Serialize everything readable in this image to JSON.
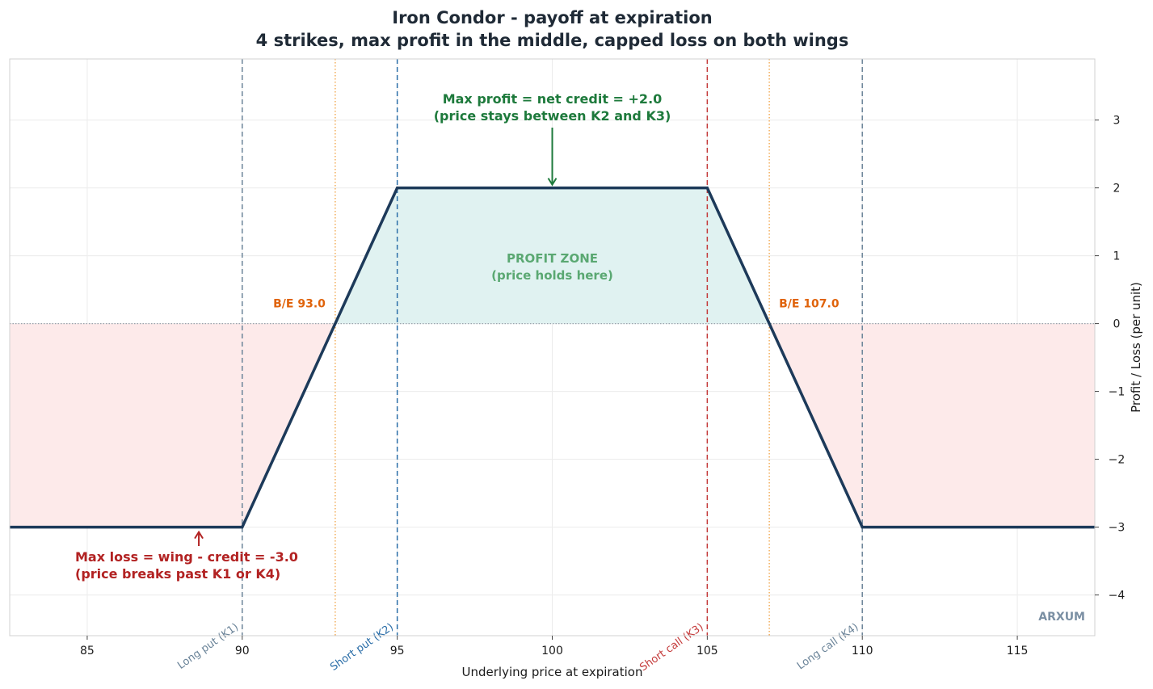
{
  "title": "Iron Condor - payoff at expiration",
  "subtitle": "4 strikes, max profit in the middle, capped loss on both wings",
  "watermark": "ARXUM",
  "colors": {
    "payoff_line": "#1d3a5a",
    "profit_fill": "#e0f2f1",
    "loss_fill": "#fdeaea",
    "long_strike": "#6b8499",
    "short_put": "#2b6ea8",
    "short_call": "#c43a3a",
    "breakeven": "#f0a040",
    "breakeven_text": "#e0630b",
    "profit_text": "#1e7a3c",
    "profit_zone_text": "#5aa872",
    "loss_text": "#b22222",
    "watermark": "#7a8fa3"
  },
  "chart_data": {
    "type": "line",
    "xlabel": "Underlying price at expiration",
    "ylabel": "Profit / Loss (per unit)",
    "xlim": [
      82.5,
      117.5
    ],
    "ylim": [
      -4.6,
      3.9
    ],
    "x_ticks": [
      85,
      90,
      95,
      100,
      105,
      110,
      115
    ],
    "y_ticks": [
      3,
      2,
      1,
      0,
      -1,
      -2,
      -3,
      -4
    ],
    "x_tick_labels": [
      "85",
      "90",
      "95",
      "100",
      "105",
      "110",
      "115"
    ],
    "y_tick_labels": [
      "3",
      "2",
      "1",
      "0",
      "−1",
      "−2",
      "−3",
      "−4"
    ],
    "grid": true,
    "series": [
      {
        "x": [
          82.5,
          90,
          95,
          105,
          110,
          117.5
        ],
        "y": [
          -3,
          -3,
          2,
          2,
          -3,
          -3
        ]
      }
    ],
    "strikes": [
      {
        "x": 90,
        "label": "Long put (K1)",
        "kind": "long"
      },
      {
        "x": 95,
        "label": "Short put (K2)",
        "kind": "short_put"
      },
      {
        "x": 105,
        "label": "Short call (K3)",
        "kind": "short_call"
      },
      {
        "x": 110,
        "label": "Long call (K4)",
        "kind": "long"
      }
    ],
    "breakevens": [
      {
        "x": 93,
        "label": "B/E 93.0"
      },
      {
        "x": 107,
        "label": "B/E 107.0"
      }
    ],
    "annotations": {
      "max_profit": {
        "line1": "Max profit = net credit = +2.0",
        "line2": "(price stays between K2 and K3)",
        "x": 100,
        "y": 2
      },
      "profit_zone": {
        "line1": "PROFIT ZONE",
        "line2": "(price holds here)"
      },
      "max_loss": {
        "line1": "Max loss = wing - credit = -3.0",
        "line2": "(price breaks past K1 or K4)",
        "x": 88.6,
        "y": -3
      }
    }
  }
}
